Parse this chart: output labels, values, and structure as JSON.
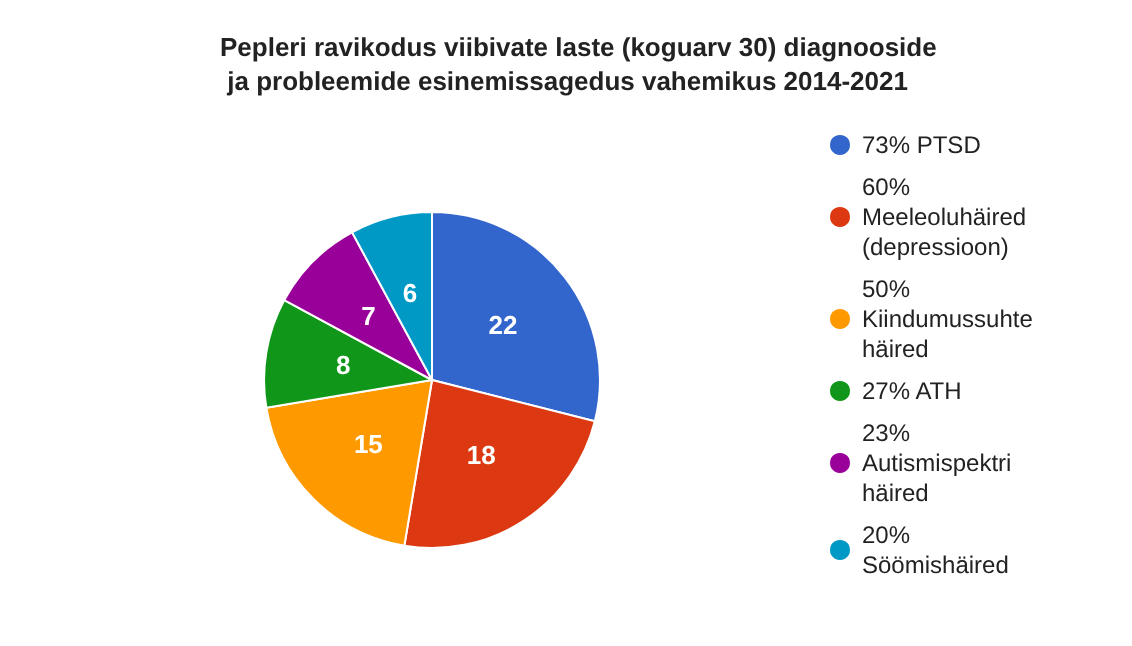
{
  "chart_data": {
    "type": "pie",
    "title": "Pepleri ravikodus viibivate laste (koguarv 30) diagnooside ja probleemide esinemissagedus vahemikus 2014-2021",
    "categories": [
      "73% PTSD",
      "60% Meeleoluhäired (depressioon)",
      "50% Kiindumussuhte häired",
      "27% ATH",
      "23% Autismispektri häired",
      "20% Söömishäired"
    ],
    "values": [
      22,
      18,
      15,
      8,
      7,
      6
    ],
    "colors": [
      "#3366cc",
      "#dc3912",
      "#ff9900",
      "#109618",
      "#990099",
      "#0099c6"
    ],
    "data_labels": true,
    "legend": "right"
  }
}
